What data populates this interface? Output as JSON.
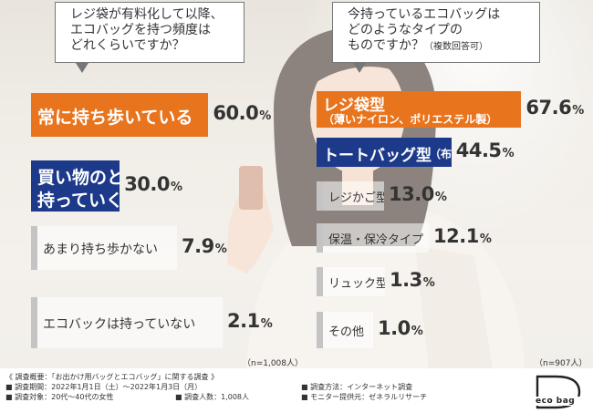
{
  "chart_data": [
    {
      "type": "bar",
      "title": "レジ袋が有料化して以降、エコバッグを持つ頻度はどれくらいですか？",
      "title_lines": [
        "レジ袋が有料化して以降、",
        "エコバッグを持つ頻度は",
        "どれくらいですか？"
      ],
      "categories": [
        "常に持ち歩いている",
        "買い物のときのみ持っていく",
        "あまり持ち歩かない",
        "エコバックは持っていない"
      ],
      "category_lines": [
        [
          "常に持ち歩いている"
        ],
        [
          "買い物のときのみ",
          "持っていく"
        ],
        [
          "あまり持ち歩かない"
        ],
        [
          "エコバックは持っていない"
        ]
      ],
      "values": [
        60.0,
        30.0,
        7.9,
        2.1
      ],
      "value_labels": [
        "60.0",
        "30.0",
        "7.9",
        "2.1"
      ],
      "unit": "%",
      "sample": "（n=1,008人）",
      "colors": [
        "#e8741e",
        "#1d3a8a",
        "#bdbdbd",
        "#bdbdbd"
      ]
    },
    {
      "type": "bar",
      "title": "今持っているエコバッグはどのようなタイプのものですか？（複数回答可）",
      "title_lines": [
        "今持っているエコバッグは",
        "どのようなタイプの",
        "ものですか？"
      ],
      "title_suffix": "（複数回答可）",
      "categories": [
        "レジ袋型（薄いナイロン、ポリエステル製）",
        "トートバッグ型（布製）",
        "レジかご型",
        "保温・保冷タイプ",
        "リュック型",
        "その他"
      ],
      "category_lines": [
        [
          "レジ袋型",
          "（薄いナイロン、ポリエステル製）"
        ],
        [
          "トートバッグ型",
          "（布製）"
        ],
        [
          "レジかご型"
        ],
        [
          "保温・保冷タイプ"
        ],
        [
          "リュック型"
        ],
        [
          "その他"
        ]
      ],
      "values": [
        67.6,
        44.5,
        13.0,
        12.1,
        1.3,
        1.0
      ],
      "value_labels": [
        "67.6",
        "44.5",
        "13.0",
        "12.1",
        "1.3",
        "1.0"
      ],
      "unit": "%",
      "sample": "（n=907人）",
      "colors": [
        "#e8741e",
        "#1d3a8a",
        "#bdbdbd",
        "#bdbdbd",
        "#bdbdbd",
        "#bdbdbd"
      ]
    }
  ],
  "footer": {
    "overview": "《 調査概要：「お出かけ用バッグとエコバッグ」に関する調査 》",
    "period": "■ 調査期間：2022年1月1日（土）～2022年1月3日（月）",
    "method": "■ 調査方法：インターネット調査",
    "target": "■ 調査対象：20代～40代の女性",
    "count": "■ 調査人数：1,008人",
    "provider": "■ モニター提供元：ゼネラルリサーチ"
  },
  "logo": {
    "text": "eco bag"
  }
}
